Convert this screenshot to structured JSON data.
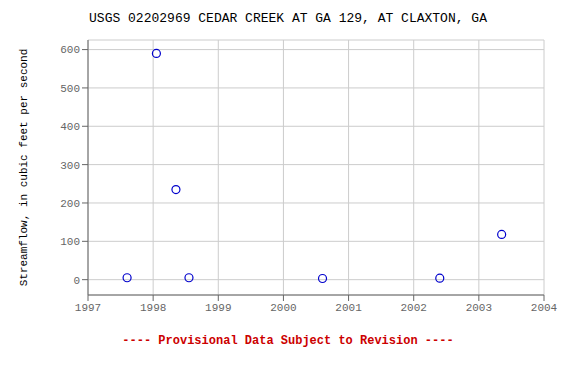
{
  "chart_data": {
    "type": "scatter",
    "title": "USGS 02202969 CEDAR CREEK AT GA 129, AT CLAXTON, GA",
    "ylabel": "Streamflow, in cubic feet per second",
    "annotations": [
      {
        "text": "---- Provisional Data Subject to Revision ----",
        "color": "#cc0000"
      }
    ],
    "x": [
      1997.6,
      1998.05,
      1998.35,
      1998.55,
      2000.6,
      2002.4,
      2003.35
    ],
    "series": [
      {
        "color": "#0000cc",
        "marker": "open_circle",
        "values": [
          5,
          590,
          235,
          5,
          3,
          4,
          118
        ]
      }
    ],
    "xlim": [
      1997,
      2004
    ],
    "ylim": [
      -40,
      625
    ],
    "xticks": [
      1997,
      1998,
      1999,
      2000,
      2001,
      2002,
      2003,
      2004
    ],
    "yticks": [
      0,
      100,
      200,
      300,
      400,
      500,
      600
    ],
    "grid": true
  }
}
